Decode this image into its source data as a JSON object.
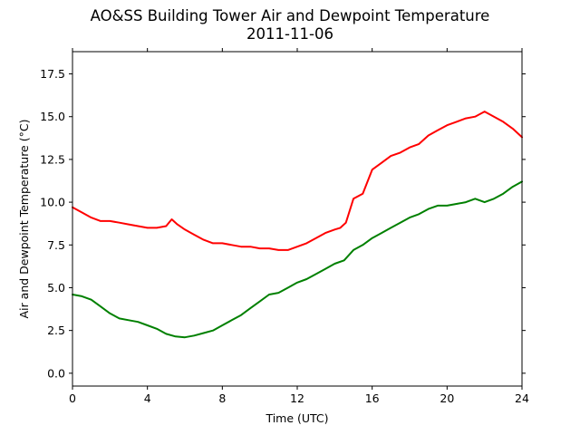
{
  "chart_data": {
    "type": "line",
    "title": "AO&SS Building Tower Air and Dewpoint Temperature",
    "subtitle": "2011-11-06",
    "xlabel": "Time (UTC)",
    "ylabel": "Air and Dewpoint Temperature (°C)",
    "xlim": [
      0,
      24
    ],
    "ylim": [
      -0.75,
      18.8
    ],
    "xticks": [
      0,
      4,
      8,
      12,
      16,
      20,
      24
    ],
    "xtick_labels": [
      "0",
      "4",
      "8",
      "12",
      "16",
      "20",
      "24"
    ],
    "yticks": [
      0,
      2.5,
      5,
      7.5,
      10,
      12.5,
      15,
      17.5
    ],
    "ytick_labels": [
      "0.0",
      "2.5",
      "5.0",
      "7.5",
      "10.0",
      "12.5",
      "15.0",
      "17.5"
    ],
    "grid": false,
    "series": [
      {
        "color": "#ff0000",
        "x": [
          0,
          0.5,
          1,
          1.5,
          2,
          2.5,
          3,
          3.5,
          4,
          4.5,
          5,
          5.3,
          5.6,
          6,
          6.5,
          7,
          7.5,
          8,
          8.5,
          9,
          9.5,
          10,
          10.5,
          11,
          11.5,
          12,
          12.5,
          13,
          13.5,
          14,
          14.3,
          14.6,
          15,
          15.5,
          16,
          16.5,
          17,
          17.5,
          18,
          18.5,
          19,
          19.5,
          20,
          20.5,
          21,
          21.5,
          22,
          22.5,
          23,
          23.5,
          24
        ],
        "values": [
          9.7,
          9.4,
          9.1,
          8.9,
          8.9,
          8.8,
          8.7,
          8.6,
          8.5,
          8.5,
          8.6,
          9.0,
          8.7,
          8.4,
          8.1,
          7.8,
          7.6,
          7.6,
          7.5,
          7.4,
          7.4,
          7.3,
          7.3,
          7.2,
          7.2,
          7.4,
          7.6,
          7.9,
          8.2,
          8.4,
          8.5,
          8.8,
          10.2,
          10.5,
          11.9,
          12.3,
          12.7,
          12.9,
          13.2,
          13.4,
          13.9,
          14.2,
          14.5,
          14.7,
          14.9,
          15.0,
          15.3,
          15.0,
          14.7,
          14.3,
          13.8
        ]
      },
      {
        "color": "#008000",
        "x": [
          0,
          0.5,
          1,
          1.5,
          2,
          2.5,
          3,
          3.5,
          4,
          4.5,
          5,
          5.5,
          6,
          6.5,
          7,
          7.5,
          8,
          8.5,
          9,
          9.5,
          10,
          10.5,
          11,
          11.5,
          12,
          12.5,
          13,
          13.5,
          14,
          14.5,
          15,
          15.5,
          16,
          16.5,
          17,
          17.5,
          18,
          18.5,
          19,
          19.5,
          20,
          20.5,
          21,
          21.5,
          22,
          22.5,
          23,
          23.5,
          24
        ],
        "values": [
          4.6,
          4.5,
          4.3,
          3.9,
          3.5,
          3.2,
          3.1,
          3.0,
          2.8,
          2.6,
          2.3,
          2.15,
          2.1,
          2.2,
          2.35,
          2.5,
          2.8,
          3.1,
          3.4,
          3.8,
          4.2,
          4.6,
          4.7,
          5.0,
          5.3,
          5.5,
          5.8,
          6.1,
          6.4,
          6.6,
          7.2,
          7.5,
          7.9,
          8.2,
          8.5,
          8.8,
          9.1,
          9.3,
          9.6,
          9.8,
          9.8,
          9.9,
          10.0,
          10.2,
          10.0,
          10.2,
          10.5,
          10.9,
          11.2
        ]
      }
    ]
  }
}
